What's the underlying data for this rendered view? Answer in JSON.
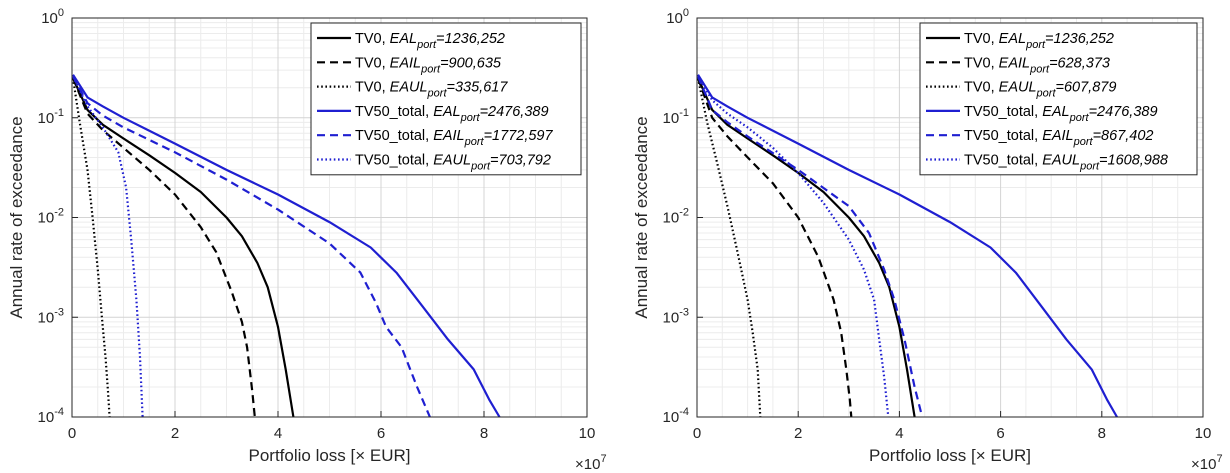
{
  "chart_data": [
    {
      "type": "line",
      "xlabel": "Portfolio loss [× EUR]",
      "ylabel": "Annual rate of exceedance",
      "x_multiplier": "×10",
      "x_multiplier_exp": "7",
      "xlim": [
        0,
        10
      ],
      "ylim": [
        0.0001,
        1
      ],
      "yscale": "log",
      "grid": true,
      "legend_position": "top-right",
      "xticks": [
        "0",
        "2",
        "4",
        "6",
        "8",
        "10"
      ],
      "yticks": [
        {
          "base": "10",
          "exp": "-4"
        },
        {
          "base": "10",
          "exp": "-3"
        },
        {
          "base": "10",
          "exp": "-2"
        },
        {
          "base": "10",
          "exp": "-1"
        },
        {
          "base": "10",
          "exp": "0"
        }
      ],
      "series": [
        {
          "name_prefix": "TV0, ",
          "metric": "EAL",
          "sub": "port",
          "value_text": "=1236,252",
          "color": "#000000",
          "dash": "solid",
          "x": [
            0.02,
            0.3,
            0.6,
            1.0,
            1.5,
            2.0,
            2.5,
            3.0,
            3.3,
            3.6,
            3.8,
            4.0,
            4.15,
            4.3
          ],
          "y": [
            0.25,
            0.12,
            0.085,
            0.062,
            0.042,
            0.028,
            0.018,
            0.01,
            0.0065,
            0.0035,
            0.002,
            0.0008,
            0.0003,
            0.0001
          ]
        },
        {
          "name_prefix": "TV0, ",
          "metric": "EAIL",
          "sub": "port",
          "value_text": "=900,635",
          "color": "#000000",
          "dash": "dashed",
          "x": [
            0.02,
            0.3,
            0.6,
            1.0,
            1.5,
            2.0,
            2.5,
            2.8,
            3.1,
            3.3,
            3.4,
            3.5,
            3.55
          ],
          "y": [
            0.25,
            0.11,
            0.075,
            0.05,
            0.03,
            0.017,
            0.008,
            0.0045,
            0.0018,
            0.0009,
            0.0005,
            0.00018,
            0.0001
          ]
        },
        {
          "name_prefix": "TV0, ",
          "metric": "EAUL",
          "sub": "port",
          "value_text": "=335,617",
          "color": "#000000",
          "dash": "dotted",
          "x": [
            0.02,
            0.15,
            0.3,
            0.4,
            0.5,
            0.58,
            0.65,
            0.7,
            0.73
          ],
          "y": [
            0.25,
            0.09,
            0.03,
            0.01,
            0.003,
            0.001,
            0.0004,
            0.00018,
            0.0001
          ]
        },
        {
          "name_prefix": "TV50_total, ",
          "metric": "EAL",
          "sub": "port",
          "value_text": "=2476,389",
          "color": "#1f1fd1",
          "dash": "solid",
          "x": [
            0.02,
            0.3,
            0.6,
            1.0,
            2.0,
            3.0,
            4.0,
            5.0,
            5.8,
            6.3,
            6.8,
            7.3,
            7.8,
            8.1,
            8.3
          ],
          "y": [
            0.27,
            0.16,
            0.13,
            0.1,
            0.055,
            0.03,
            0.017,
            0.009,
            0.005,
            0.0028,
            0.0013,
            0.0006,
            0.0003,
            0.00015,
            0.0001
          ]
        },
        {
          "name_prefix": "TV50_total, ",
          "metric": "EAIL",
          "sub": "port",
          "value_text": "=1772,597",
          "color": "#1f1fd1",
          "dash": "dashed",
          "x": [
            0.02,
            0.3,
            0.6,
            1.0,
            2.0,
            3.0,
            4.0,
            5.0,
            5.6,
            5.9,
            6.1,
            6.4,
            6.7,
            6.95
          ],
          "y": [
            0.26,
            0.14,
            0.105,
            0.08,
            0.045,
            0.024,
            0.012,
            0.0055,
            0.0028,
            0.0014,
            0.0008,
            0.0005,
            0.0002,
            0.0001
          ]
        },
        {
          "name_prefix": "TV50_total, ",
          "metric": "EAUL",
          "sub": "port",
          "value_text": "=703,792",
          "color": "#1f1fd1",
          "dash": "dotted",
          "x": [
            0.02,
            0.3,
            0.6,
            0.9,
            1.05,
            1.15,
            1.25,
            1.32,
            1.37
          ],
          "y": [
            0.26,
            0.13,
            0.08,
            0.045,
            0.02,
            0.006,
            0.0015,
            0.0004,
            0.0001
          ]
        }
      ]
    },
    {
      "type": "line",
      "xlabel": "Portfolio loss [× EUR]",
      "ylabel": "Annual rate of exceedance",
      "x_multiplier": "×10",
      "x_multiplier_exp": "7",
      "xlim": [
        0,
        10
      ],
      "ylim": [
        0.0001,
        1
      ],
      "yscale": "log",
      "grid": true,
      "legend_position": "top-right",
      "xticks": [
        "0",
        "2",
        "4",
        "6",
        "8",
        "10"
      ],
      "yticks": [
        {
          "base": "10",
          "exp": "-4"
        },
        {
          "base": "10",
          "exp": "-3"
        },
        {
          "base": "10",
          "exp": "-2"
        },
        {
          "base": "10",
          "exp": "-1"
        },
        {
          "base": "10",
          "exp": "0"
        }
      ],
      "series": [
        {
          "name_prefix": "TV0, ",
          "metric": "EAL",
          "sub": "port",
          "value_text": "=1236,252",
          "color": "#000000",
          "dash": "solid",
          "x": [
            0.02,
            0.3,
            0.6,
            1.0,
            1.5,
            2.0,
            2.5,
            3.0,
            3.3,
            3.6,
            3.8,
            4.0,
            4.15,
            4.3
          ],
          "y": [
            0.25,
            0.12,
            0.085,
            0.062,
            0.042,
            0.028,
            0.018,
            0.01,
            0.0065,
            0.0035,
            0.002,
            0.0008,
            0.0003,
            0.0001
          ]
        },
        {
          "name_prefix": "TV0, ",
          "metric": "EAIL",
          "sub": "port",
          "value_text": "=628,373",
          "color": "#000000",
          "dash": "dashed",
          "x": [
            0.02,
            0.3,
            0.6,
            1.0,
            1.5,
            2.0,
            2.4,
            2.7,
            2.85,
            2.95,
            3.02,
            3.05
          ],
          "y": [
            0.25,
            0.1,
            0.065,
            0.04,
            0.022,
            0.01,
            0.004,
            0.0015,
            0.0007,
            0.0003,
            0.00015,
            0.0001
          ]
        },
        {
          "name_prefix": "TV0, ",
          "metric": "EAUL",
          "sub": "port",
          "value_text": "=607,879",
          "color": "#000000",
          "dash": "dotted",
          "x": [
            0.02,
            0.2,
            0.4,
            0.6,
            0.8,
            1.0,
            1.1,
            1.2,
            1.25
          ],
          "y": [
            0.25,
            0.09,
            0.035,
            0.013,
            0.0045,
            0.0015,
            0.0007,
            0.0003,
            0.0001
          ]
        },
        {
          "name_prefix": "TV50_total, ",
          "metric": "EAL",
          "sub": "port",
          "value_text": "=2476,389",
          "color": "#1f1fd1",
          "dash": "solid",
          "x": [
            0.02,
            0.3,
            0.6,
            1.0,
            2.0,
            3.0,
            4.0,
            5.0,
            5.8,
            6.3,
            6.8,
            7.3,
            7.8,
            8.1,
            8.3
          ],
          "y": [
            0.27,
            0.16,
            0.13,
            0.1,
            0.055,
            0.03,
            0.017,
            0.009,
            0.005,
            0.0028,
            0.0013,
            0.0006,
            0.0003,
            0.00015,
            0.0001
          ]
        },
        {
          "name_prefix": "TV50_total, ",
          "metric": "EAIL",
          "sub": "port",
          "value_text": "=867,402",
          "color": "#1f1fd1",
          "dash": "dashed",
          "x": [
            0.02,
            0.3,
            0.6,
            1.0,
            2.0,
            3.0,
            3.4,
            3.7,
            3.9,
            4.1,
            4.3,
            4.45
          ],
          "y": [
            0.26,
            0.12,
            0.09,
            0.065,
            0.03,
            0.013,
            0.007,
            0.003,
            0.0015,
            0.0006,
            0.0002,
            0.0001
          ]
        },
        {
          "name_prefix": "TV50_total, ",
          "metric": "EAUL",
          "sub": "port",
          "value_text": "=1608,988",
          "color": "#1f1fd1",
          "dash": "dotted",
          "x": [
            0.02,
            0.3,
            0.6,
            1.0,
            1.5,
            2.0,
            2.5,
            3.0,
            3.3,
            3.5,
            3.6,
            3.7,
            3.78
          ],
          "y": [
            0.26,
            0.15,
            0.11,
            0.08,
            0.05,
            0.028,
            0.014,
            0.006,
            0.003,
            0.0015,
            0.0006,
            0.00025,
            0.0001
          ]
        }
      ]
    }
  ]
}
